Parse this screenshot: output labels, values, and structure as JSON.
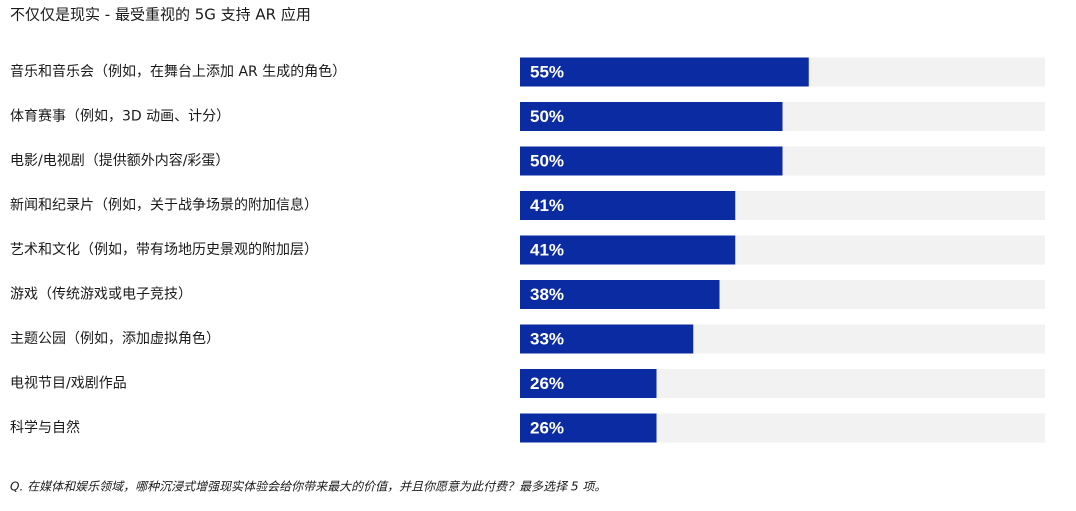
{
  "chart_data": {
    "type": "bar",
    "orientation": "horizontal",
    "title": "不仅仅是现实 - 最受重视的 5G 支持 AR 应用",
    "categories": [
      "音乐和音乐会（例如，在舞台上添加 AR 生成的角色）",
      "体育赛事（例如，3D 动画、计分）",
      "电影/电视剧（提供额外内容/彩蛋）",
      "新闻和纪录片（例如，关于战争场景的附加信息）",
      "艺术和文化（例如，带有场地历史景观的附加层）",
      "游戏（传统游戏或电子竞技）",
      "主题公园（例如，添加虚拟角色）",
      "电视节目/戏剧作品",
      "科学与自然"
    ],
    "values": [
      55,
      50,
      50,
      41,
      41,
      38,
      33,
      26,
      26
    ],
    "value_labels": [
      "55%",
      "50%",
      "50%",
      "41%",
      "41%",
      "38%",
      "33%",
      "26%",
      "26%"
    ],
    "color": "#0b2ba3",
    "track_color": "#f2f2f2",
    "xlim": [
      0,
      100
    ],
    "footnote": "Q. 在媒体和娱乐领域，哪种沉浸式增强现实体验会给你带来最大的价值，并且你愿意为此付费？最多选择 5 项。"
  }
}
